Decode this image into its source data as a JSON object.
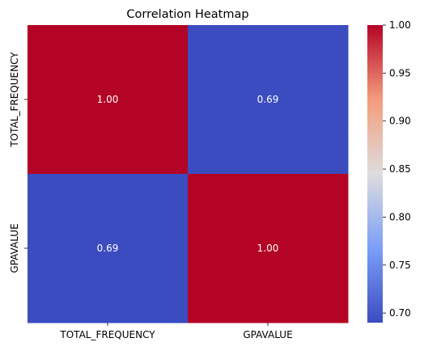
{
  "chart_data": {
    "type": "heatmap",
    "title": "Correlation Heatmap",
    "xlabel": "",
    "ylabel": "",
    "x_categories": [
      "TOTAL_FREQUENCY",
      "GPAVALUE"
    ],
    "y_categories": [
      "TOTAL_FREQUENCY",
      "GPAVALUE"
    ],
    "values": [
      [
        1.0,
        0.69
      ],
      [
        0.69,
        1.0
      ]
    ],
    "value_labels": [
      [
        "1.00",
        "0.69"
      ],
      [
        "0.69",
        "1.00"
      ]
    ],
    "colormap": "coolwarm",
    "colorbar": {
      "range": [
        0.69,
        1.0
      ],
      "ticks": [
        0.7,
        0.75,
        0.8,
        0.85,
        0.9,
        0.95,
        1.0
      ],
      "tick_labels": [
        "0.70",
        "0.75",
        "0.80",
        "0.85",
        "0.90",
        "0.95",
        "1.00"
      ],
      "low_color": "#3b4cc0",
      "high_color": "#b40426"
    },
    "grid": false
  }
}
